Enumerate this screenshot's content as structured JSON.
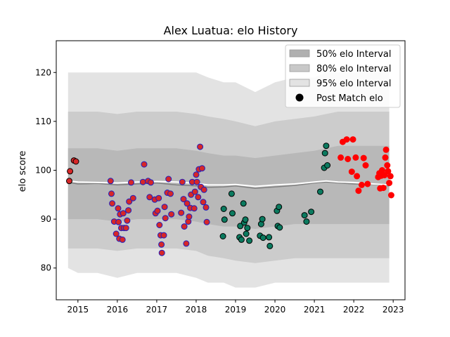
{
  "chart_data": {
    "type": "scatter",
    "title": "Alex Luatua: elo History",
    "xlabel": "",
    "ylabel": "elo score",
    "xlim": [
      2014.45,
      2023.3
    ],
    "ylim": [
      73.5,
      126.5
    ],
    "x_ticks": [
      2015,
      2016,
      2017,
      2018,
      2019,
      2020,
      2021,
      2022,
      2023
    ],
    "y_ticks": [
      80,
      90,
      100,
      110,
      120
    ],
    "legend": {
      "placement": "top-right",
      "entries": [
        {
          "label": "50% elo Interval",
          "kind": "band",
          "color": "#b0b0b0"
        },
        {
          "label": "80% elo Interval",
          "kind": "band",
          "color": "#c8c8c8"
        },
        {
          "label": "95% elo Interval",
          "kind": "band",
          "color": "#e3e3e3"
        },
        {
          "label": "Post Match elo",
          "kind": "marker",
          "color": "#000000"
        }
      ]
    },
    "bands": {
      "x": [
        2014.75,
        2015.0,
        2015.5,
        2016.0,
        2016.5,
        2017.0,
        2017.5,
        2018.0,
        2018.3,
        2018.7,
        2019.0,
        2019.5,
        2020.0,
        2020.5,
        2021.0,
        2021.3,
        2021.6,
        2022.0,
        2022.5,
        2022.9
      ],
      "p95_upper": [
        120,
        120,
        120,
        120,
        120,
        120,
        120,
        120,
        119,
        118,
        118,
        116,
        118,
        119,
        119,
        120,
        120,
        120,
        120,
        120
      ],
      "p95_lower": [
        80,
        79,
        79,
        78,
        79,
        79,
        79,
        78,
        77,
        77,
        76,
        76,
        77,
        77,
        77,
        77,
        77,
        77,
        77,
        77
      ],
      "p80_upper": [
        112,
        112,
        112,
        111.5,
        112,
        112,
        112,
        111.5,
        111,
        110.5,
        110,
        109,
        110,
        110.5,
        111,
        111.5,
        112,
        112,
        112,
        112
      ],
      "p80_lower": [
        84,
        84,
        84,
        83.5,
        84,
        84,
        84,
        83.5,
        82.5,
        82,
        81.5,
        81,
        81.5,
        82,
        82,
        82,
        82,
        82,
        82,
        82
      ],
      "p50_upper": [
        104.5,
        104.5,
        104.5,
        104,
        104.5,
        104.5,
        104.5,
        104,
        103.5,
        103,
        103,
        102.5,
        103,
        103.5,
        104,
        104.5,
        105,
        105,
        105,
        105
      ],
      "p50_lower": [
        90,
        90,
        90,
        89.5,
        90,
        90,
        90,
        89.5,
        89,
        88.5,
        88.5,
        88,
        88.5,
        89,
        89,
        89,
        89,
        89,
        89,
        89
      ],
      "mean": [
        97.5,
        97.2,
        97.3,
        97.0,
        97.2,
        97.4,
        97.0,
        96.8,
        96.5,
        96.6,
        96.8,
        96.3,
        96.6,
        96.9,
        97.4,
        97.6,
        97.4,
        97.2,
        97.1,
        96.8
      ],
      "median": [
        97.8,
        97.6,
        97.5,
        97.4,
        97.6,
        97.7,
        97.6,
        97.3,
        97.0,
        97.0,
        97.1,
        96.7,
        97.0,
        97.2,
        97.6,
        97.8,
        97.6,
        97.5,
        97.2,
        97.0
      ]
    },
    "series": [
      {
        "face": "#d62728",
        "edge": "#000000",
        "points": [
          [
            2014.78,
            97.8
          ],
          [
            2014.8,
            99.8
          ],
          [
            2014.9,
            102.0
          ],
          [
            2014.95,
            101.8
          ]
        ]
      },
      {
        "face": "#d62728",
        "edge": "#1f1fbf",
        "points": [
          [
            2015.83,
            97.8
          ],
          [
            2015.85,
            95.2
          ],
          [
            2015.87,
            93.2
          ],
          [
            2015.92,
            89.5
          ],
          [
            2015.97,
            87.0
          ],
          [
            2016.02,
            92.2
          ],
          [
            2016.03,
            89.4
          ],
          [
            2016.05,
            86.0
          ],
          [
            2016.07,
            91.0
          ],
          [
            2016.1,
            88.2
          ],
          [
            2016.13,
            85.8
          ],
          [
            2016.15,
            91.2
          ],
          [
            2016.17,
            88.2
          ],
          [
            2016.22,
            88.2
          ],
          [
            2016.25,
            89.7
          ],
          [
            2016.28,
            91.8
          ],
          [
            2016.3,
            93.6
          ],
          [
            2016.35,
            97.5
          ],
          [
            2016.4,
            94.3
          ],
          [
            2016.65,
            97.6
          ],
          [
            2016.68,
            101.2
          ],
          [
            2016.78,
            97.8
          ],
          [
            2016.82,
            94.5
          ],
          [
            2016.85,
            97.5
          ],
          [
            2016.95,
            94.0
          ],
          [
            2016.97,
            91.2
          ],
          [
            2017.02,
            91.7
          ],
          [
            2017.05,
            94.3
          ],
          [
            2017.07,
            88.8
          ],
          [
            2017.1,
            86.7
          ],
          [
            2017.12,
            84.8
          ],
          [
            2017.13,
            83.1
          ],
          [
            2017.18,
            86.7
          ],
          [
            2017.2,
            92.5
          ],
          [
            2017.22,
            90.2
          ],
          [
            2017.27,
            95.4
          ],
          [
            2017.3,
            98.2
          ],
          [
            2017.35,
            95.2
          ],
          [
            2017.37,
            91.0
          ],
          [
            2017.62,
            91.3
          ],
          [
            2017.65,
            97.6
          ],
          [
            2017.68,
            94.1
          ],
          [
            2017.7,
            88.5
          ],
          [
            2017.75,
            85.0
          ],
          [
            2017.77,
            93.2
          ],
          [
            2017.8,
            89.5
          ],
          [
            2017.82,
            90.5
          ],
          [
            2017.85,
            92.3
          ],
          [
            2017.87,
            95.0
          ],
          [
            2017.9,
            97.6
          ],
          [
            2017.95,
            92.2
          ],
          [
            2017.97,
            95.6
          ],
          [
            2018.0,
            99.1
          ],
          [
            2018.02,
            97.6
          ],
          [
            2018.05,
            94.5
          ],
          [
            2018.07,
            100.2
          ],
          [
            2018.1,
            104.8
          ],
          [
            2018.12,
            96.6
          ],
          [
            2018.15,
            100.4
          ],
          [
            2018.18,
            93.5
          ],
          [
            2018.2,
            96.0
          ],
          [
            2018.25,
            92.4
          ],
          [
            2018.27,
            89.4
          ]
        ]
      },
      {
        "face": "#0b7a5f",
        "edge": "#000000",
        "points": [
          [
            2018.68,
            86.5
          ],
          [
            2018.7,
            92.1
          ],
          [
            2018.72,
            89.9
          ],
          [
            2018.9,
            95.2
          ],
          [
            2018.92,
            91.2
          ],
          [
            2019.1,
            86.3
          ],
          [
            2019.12,
            88.6
          ],
          [
            2019.15,
            85.8
          ],
          [
            2019.2,
            93.2
          ],
          [
            2019.22,
            89.3
          ],
          [
            2019.25,
            89.9
          ],
          [
            2019.27,
            87.0
          ],
          [
            2019.3,
            88.2
          ],
          [
            2019.35,
            85.6
          ],
          [
            2019.62,
            86.6
          ],
          [
            2019.65,
            89.0
          ],
          [
            2019.68,
            90.0
          ],
          [
            2019.7,
            86.2
          ],
          [
            2019.85,
            86.3
          ],
          [
            2019.87,
            84.5
          ],
          [
            2020.05,
            91.7
          ],
          [
            2020.07,
            88.6
          ],
          [
            2020.1,
            92.5
          ],
          [
            2020.12,
            88.3
          ],
          [
            2020.75,
            90.8
          ],
          [
            2020.8,
            89.5
          ],
          [
            2020.92,
            91.5
          ],
          [
            2021.15,
            95.6
          ],
          [
            2021.25,
            100.5
          ],
          [
            2021.27,
            103.5
          ],
          [
            2021.3,
            105.0
          ],
          [
            2021.33,
            101.0
          ]
        ]
      },
      {
        "face": "#ff0000",
        "edge": "#ff0000",
        "points": [
          [
            2021.67,
            102.6
          ],
          [
            2021.72,
            105.8
          ],
          [
            2021.82,
            106.3
          ],
          [
            2021.85,
            102.3
          ],
          [
            2021.95,
            99.7
          ],
          [
            2021.98,
            106.3
          ],
          [
            2022.05,
            102.6
          ],
          [
            2022.08,
            98.8
          ],
          [
            2022.12,
            95.8
          ],
          [
            2022.2,
            97.0
          ],
          [
            2022.25,
            102.5
          ],
          [
            2022.3,
            101.0
          ],
          [
            2022.35,
            97.2
          ],
          [
            2022.62,
            98.6
          ],
          [
            2022.65,
            99.4
          ],
          [
            2022.67,
            96.3
          ],
          [
            2022.7,
            98.9
          ],
          [
            2022.72,
            100.0
          ],
          [
            2022.75,
            96.4
          ],
          [
            2022.78,
            99.0
          ],
          [
            2022.8,
            102.6
          ],
          [
            2022.82,
            104.2
          ],
          [
            2022.85,
            101.0
          ],
          [
            2022.87,
            99.8
          ],
          [
            2022.9,
            97.4
          ],
          [
            2022.93,
            98.8
          ],
          [
            2022.95,
            94.9
          ]
        ]
      }
    ]
  }
}
